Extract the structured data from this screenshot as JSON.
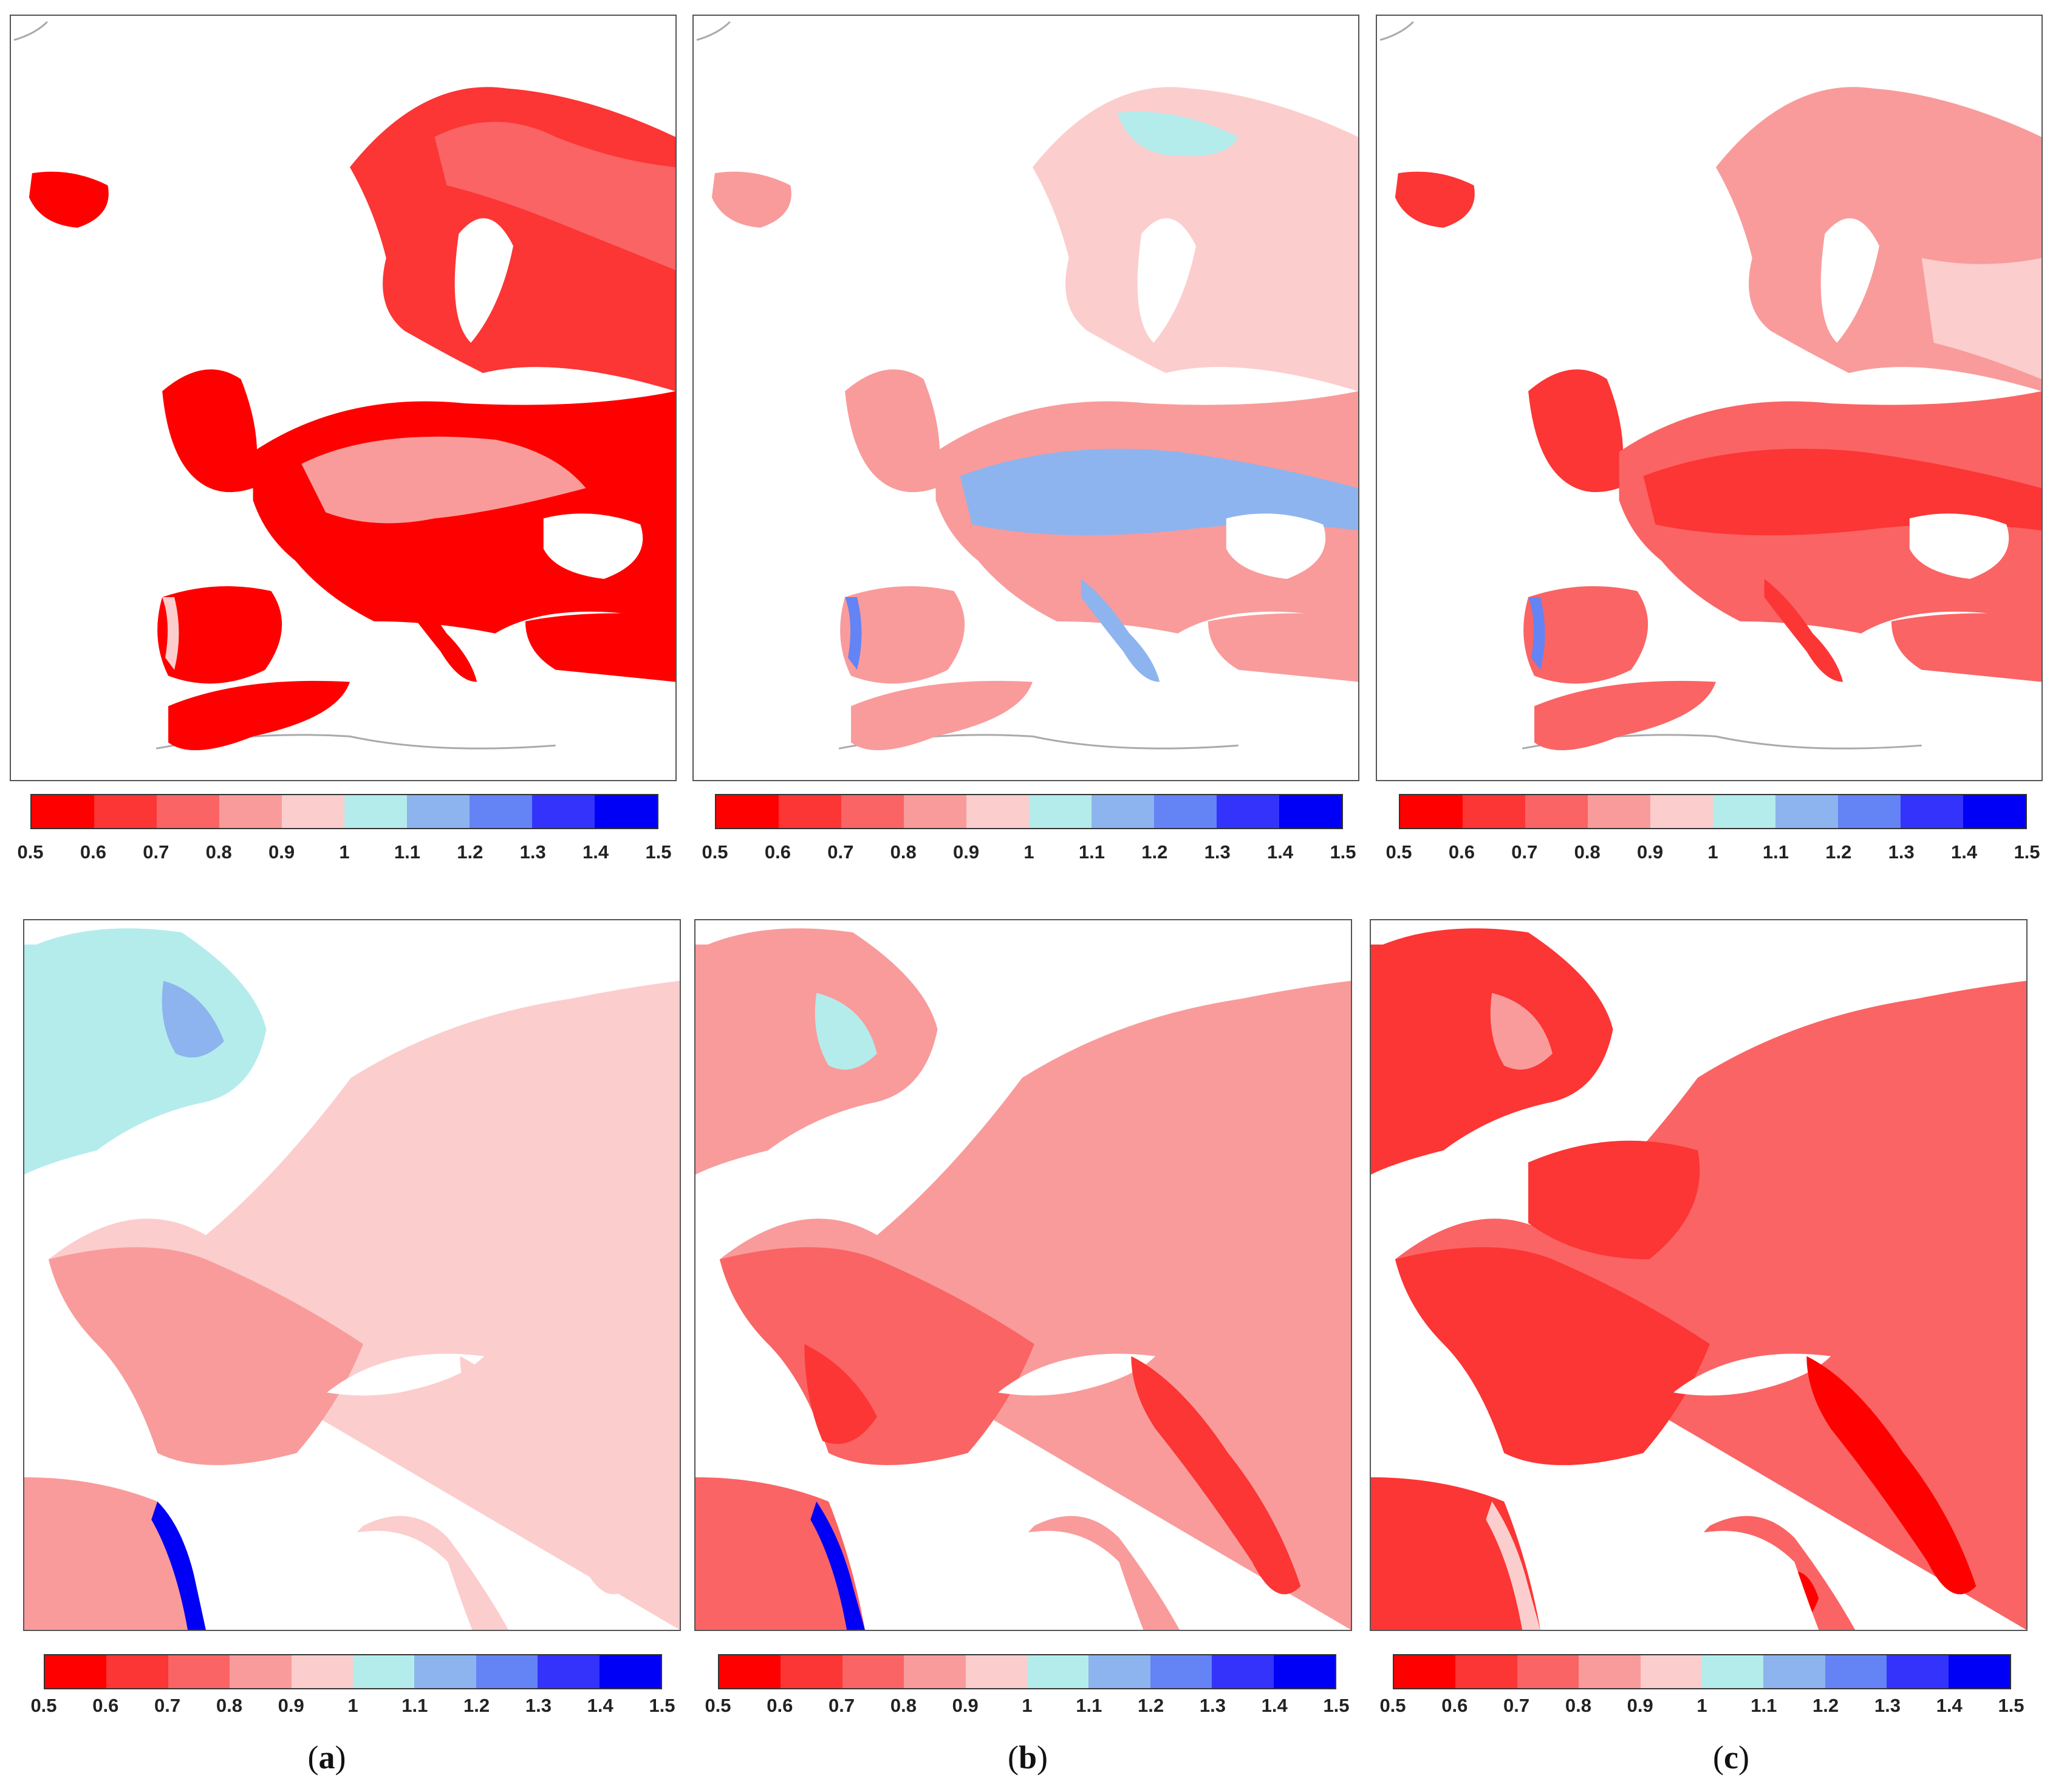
{
  "colorbar": {
    "colors": [
      "#ff0000",
      "#fc3535",
      "#fa6464",
      "#f99b9b",
      "#fccdcd",
      "#b4ecec",
      "#8db4ee",
      "#6483f5",
      "#3333fb",
      "#0000f6"
    ],
    "labels": [
      "0.5",
      "0.6",
      "0.7",
      "0.8",
      "0.9",
      "1",
      "1.1",
      "1.2",
      "1.3",
      "1.4",
      "1.5"
    ]
  },
  "captions": [
    {
      "open": "(",
      "letter": "a",
      "close": ")"
    },
    {
      "open": "(",
      "letter": "b",
      "close": ")"
    },
    {
      "open": "(",
      "letter": "c",
      "close": ")"
    }
  ],
  "panels": {
    "top": [
      {
        "id": "europe-a",
        "dominant": "#fccdcd",
        "secondary": "#b4ecec"
      },
      {
        "id": "europe-b",
        "dominant": "#f99b9b",
        "secondary": "#fccdcd"
      },
      {
        "id": "europe-c",
        "dominant": "#fa6464",
        "secondary": "#f99b9b"
      }
    ],
    "bottom": [
      {
        "id": "zoom-a",
        "dominant": "#fccdcd",
        "secondary": "#f99b9b"
      },
      {
        "id": "zoom-b",
        "dominant": "#fa6464",
        "secondary": "#f99b9b"
      },
      {
        "id": "zoom-c",
        "dominant": "#fc3535",
        "secondary": "#fa6464"
      }
    ]
  }
}
